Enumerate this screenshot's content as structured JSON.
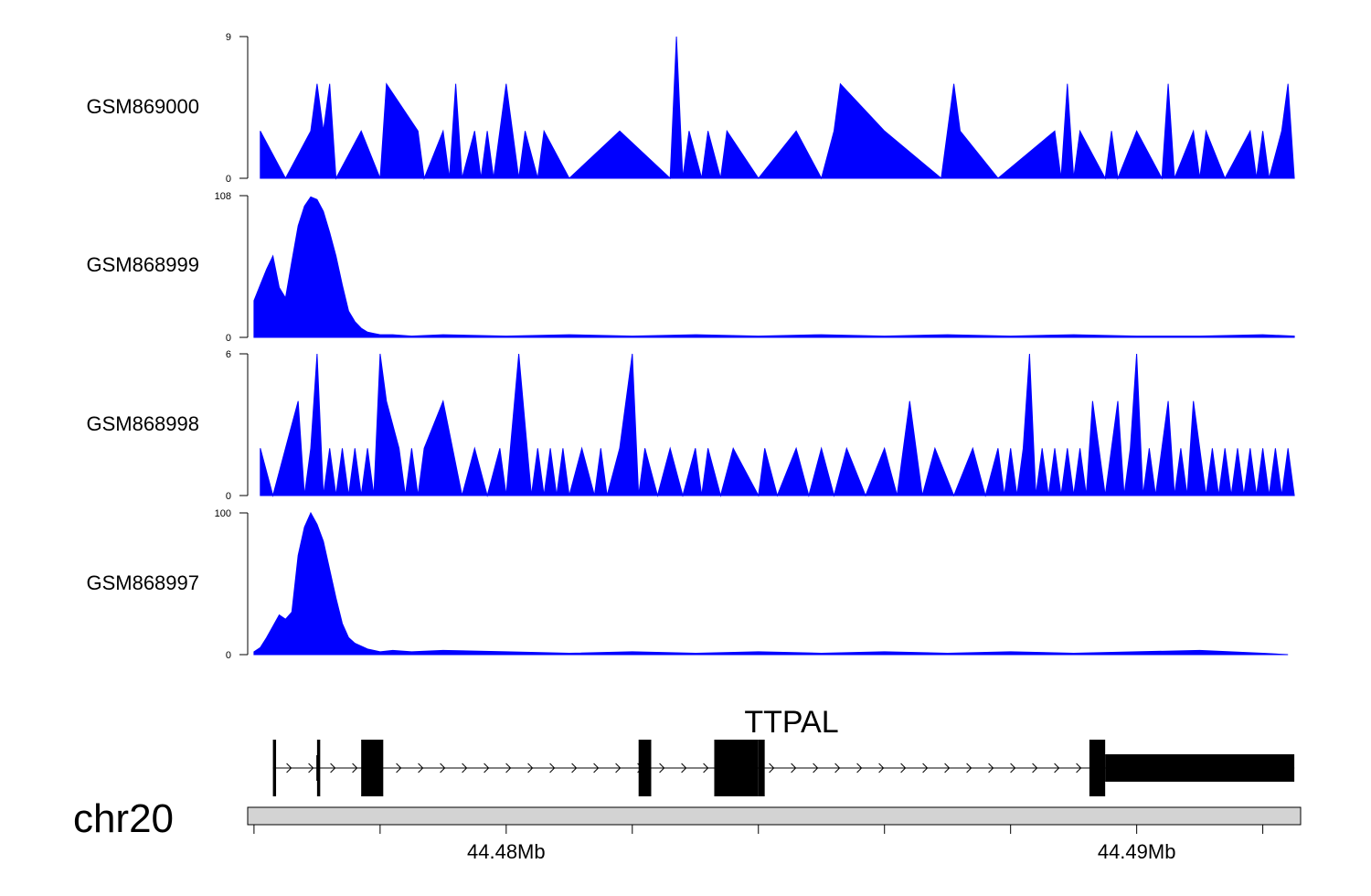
{
  "chart_data": {
    "type": "area",
    "tracks": [
      {
        "name": "GSM869000",
        "ylim": [
          0,
          9
        ],
        "ytick_labels": [
          "9",
          "0"
        ],
        "color": "#0000ff",
        "x": [
          44.4761,
          44.4765,
          44.4769,
          44.477,
          44.4771,
          44.4772,
          44.4773,
          44.4777,
          44.478,
          44.4781,
          44.4786,
          44.4787,
          44.479,
          44.4791,
          44.4792,
          44.4793,
          44.4795,
          44.4796,
          44.4797,
          44.4798,
          44.48,
          44.4801,
          44.4802,
          44.4803,
          44.4805,
          44.4806,
          44.481,
          44.4818,
          44.4826,
          44.4827,
          44.4828,
          44.4829,
          44.4831,
          44.4832,
          44.4834,
          44.4835,
          44.484,
          44.4846,
          44.485,
          44.4852,
          44.4853,
          44.486,
          44.4869,
          44.487,
          44.4871,
          44.4872,
          44.4878,
          44.4887,
          44.4888,
          44.4889,
          44.489,
          44.4891,
          44.4895,
          44.4896,
          44.4897,
          44.49,
          44.4904,
          44.4905,
          44.4906,
          44.4909,
          44.491,
          44.4911,
          44.4914,
          44.4918,
          44.4919,
          44.492,
          44.4921,
          44.4923,
          44.4924,
          44.4925
        ],
        "y": [
          3,
          0,
          3,
          6,
          3,
          6,
          0,
          3,
          0,
          6,
          3,
          0,
          3,
          0,
          6,
          0,
          3,
          0,
          3,
          0,
          6,
          3,
          0,
          3,
          0,
          3,
          0,
          3,
          0,
          9,
          0,
          3,
          0,
          3,
          0,
          3,
          0,
          3,
          0,
          3,
          6,
          3,
          0,
          3,
          6,
          3,
          0,
          3,
          0,
          6,
          0,
          3,
          0,
          3,
          0,
          3,
          0,
          6,
          0,
          3,
          0,
          3,
          0,
          3,
          0,
          3,
          0,
          3,
          6,
          0
        ]
      },
      {
        "name": "GSM868999",
        "ylim": [
          0,
          108
        ],
        "ytick_labels": [
          "108",
          "0"
        ],
        "color": "#0000ff",
        "x": [
          44.476,
          44.4761,
          44.4762,
          44.4763,
          44.4764,
          44.4765,
          44.4766,
          44.4767,
          44.4768,
          44.4769,
          44.477,
          44.4771,
          44.4772,
          44.4773,
          44.4774,
          44.4775,
          44.4776,
          44.4777,
          44.4778,
          44.4779,
          44.478,
          44.4782,
          44.4785,
          44.479,
          44.48,
          44.481,
          44.482,
          44.483,
          44.484,
          44.485,
          44.486,
          44.487,
          44.488,
          44.489,
          44.49,
          44.491,
          44.492,
          44.4925
        ],
        "y": [
          28,
          40,
          52,
          62,
          38,
          30,
          58,
          85,
          100,
          107,
          105,
          96,
          80,
          62,
          40,
          20,
          12,
          7,
          4,
          3,
          2,
          2,
          1,
          2,
          1,
          2,
          1,
          2,
          1,
          2,
          1,
          2,
          1,
          2,
          1,
          1,
          2,
          1
        ]
      },
      {
        "name": "GSM868998",
        "ylim": [
          0,
          6
        ],
        "ytick_labels": [
          "6",
          "0"
        ],
        "color": "#0000ff",
        "x": [
          44.4761,
          44.4763,
          44.4765,
          44.4767,
          44.4768,
          44.4769,
          44.477,
          44.4771,
          44.4772,
          44.4773,
          44.4774,
          44.4775,
          44.4776,
          44.4777,
          44.4778,
          44.4779,
          44.478,
          44.4781,
          44.4783,
          44.4784,
          44.4785,
          44.4786,
          44.4787,
          44.479,
          44.4793,
          44.4795,
          44.4797,
          44.4799,
          44.48,
          44.4802,
          44.4804,
          44.4805,
          44.4806,
          44.4807,
          44.4808,
          44.4809,
          44.481,
          44.4812,
          44.4814,
          44.4815,
          44.4816,
          44.4818,
          44.482,
          44.4821,
          44.4822,
          44.4824,
          44.4826,
          44.4828,
          44.483,
          44.4831,
          44.4832,
          44.4834,
          44.4836,
          44.484,
          44.4841,
          44.4843,
          44.4846,
          44.4848,
          44.485,
          44.4852,
          44.4854,
          44.4857,
          44.486,
          44.4862,
          44.4864,
          44.4866,
          44.4868,
          44.4871,
          44.4874,
          44.4876,
          44.4878,
          44.4879,
          44.488,
          44.4881,
          44.4882,
          44.4883,
          44.4884,
          44.4885,
          44.4886,
          44.4887,
          44.4888,
          44.4889,
          44.489,
          44.4891,
          44.4892,
          44.4893,
          44.4894,
          44.4895,
          44.4896,
          44.4897,
          44.4898,
          44.4899,
          44.49,
          44.4901,
          44.4902,
          44.4903,
          44.4904,
          44.4905,
          44.4906,
          44.4907,
          44.4908,
          44.4909,
          44.491,
          44.4911,
          44.4912,
          44.4913,
          44.4914,
          44.4915,
          44.4916,
          44.4917,
          44.4918,
          44.4919,
          44.492,
          44.4921,
          44.4922,
          44.4923,
          44.4924,
          44.4925
        ],
        "y": [
          2,
          0,
          2,
          4,
          0,
          2,
          6,
          0,
          2,
          0,
          2,
          0,
          2,
          0,
          2,
          0,
          6,
          4,
          2,
          0,
          2,
          0,
          2,
          4,
          0,
          2,
          0,
          2,
          0,
          6,
          0,
          2,
          0,
          2,
          0,
          2,
          0,
          2,
          0,
          2,
          0,
          2,
          6,
          0,
          2,
          0,
          2,
          0,
          2,
          0,
          2,
          0,
          2,
          0,
          2,
          0,
          2,
          0,
          2,
          0,
          2,
          0,
          2,
          0,
          4,
          0,
          2,
          0,
          2,
          0,
          2,
          0,
          2,
          0,
          2,
          6,
          0,
          2,
          0,
          2,
          0,
          2,
          0,
          2,
          0,
          4,
          2,
          0,
          2,
          4,
          0,
          2,
          6,
          0,
          2,
          0,
          2,
          4,
          0,
          2,
          0,
          4,
          2,
          0,
          2,
          0,
          2,
          0,
          2,
          0,
          2,
          0,
          2,
          0,
          2,
          0,
          2,
          0
        ]
      },
      {
        "name": "GSM868997",
        "ylim": [
          0,
          100
        ],
        "ytick_labels": [
          "100",
          "0"
        ],
        "color": "#0000ff",
        "x": [
          44.476,
          44.4761,
          44.4762,
          44.4763,
          44.4764,
          44.4765,
          44.4766,
          44.4767,
          44.4768,
          44.4769,
          44.477,
          44.4771,
          44.4772,
          44.4773,
          44.4774,
          44.4775,
          44.4776,
          44.4777,
          44.4778,
          44.4779,
          44.478,
          44.4782,
          44.4785,
          44.479,
          44.48,
          44.481,
          44.482,
          44.483,
          44.484,
          44.485,
          44.486,
          44.487,
          44.488,
          44.489,
          44.49,
          44.491,
          44.492,
          44.4924
        ],
        "y": [
          2,
          5,
          12,
          20,
          28,
          25,
          30,
          70,
          90,
          100,
          92,
          80,
          60,
          40,
          22,
          12,
          8,
          6,
          4,
          3,
          2,
          3,
          2,
          3,
          2,
          1,
          2,
          1,
          2,
          1,
          2,
          1,
          2,
          1,
          2,
          3,
          1,
          0
        ]
      }
    ],
    "gene": {
      "name": "TTPAL",
      "strand": "+",
      "start": 44.4763,
      "end": 44.4925,
      "exons": [
        [
          44.4763,
          44.47635
        ],
        [
          44.477,
          44.47705
        ],
        [
          44.4777,
          44.47805
        ],
        [
          44.4821,
          44.4823
        ],
        [
          44.4833,
          44.484
        ],
        [
          44.484,
          44.4841
        ],
        [
          44.48925,
          44.4895
        ]
      ],
      "utr_exon": [
        44.4895,
        44.4925
      ],
      "sub_intron_tick": 44.477
    },
    "chromosome": "chr20",
    "x_axis": {
      "range": [
        44.4759,
        44.4926
      ],
      "minor_ticks": [
        44.476,
        44.478,
        44.48,
        44.482,
        44.484,
        44.486,
        44.488,
        44.49,
        44.492
      ],
      "labeled_ticks": [
        44.48,
        44.49
      ],
      "tick_labels": [
        "44.48Mb",
        "44.49Mb"
      ]
    }
  }
}
